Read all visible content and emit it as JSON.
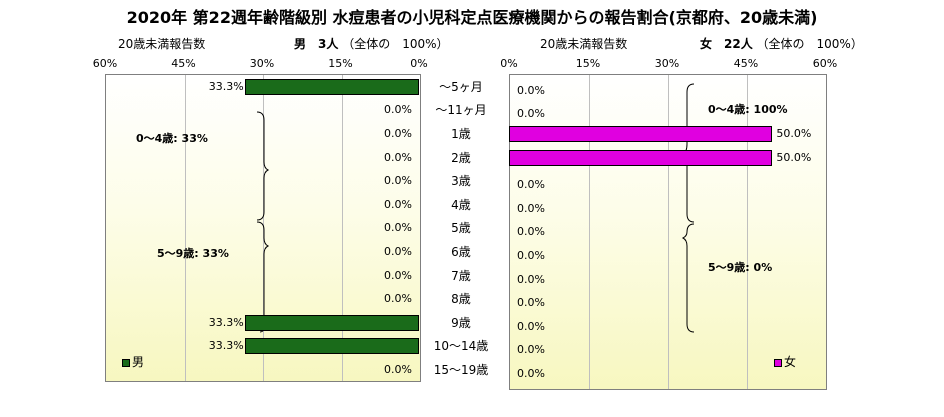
{
  "title": "2020年 第22週年齢階級別 水痘患者の小児科定点医療機関からの報告割合(京都府、20歳未満)",
  "male_header": {
    "left": "20歳未満報告数",
    "right_bold": "男　3人",
    "right_rest": "（全体の　100%）"
  },
  "female_header": {
    "left": "20歳未満報告数",
    "right_bold": "女　22人",
    "right_rest": "（全体の　100%）"
  },
  "male_groups": [
    "0～4歳: 33%",
    "5～9歳: 33%"
  ],
  "female_groups": [
    "0～4歳: 100%",
    "5～9歳: 0%"
  ],
  "legend": {
    "male": "男",
    "female": "女"
  },
  "colors": {
    "male": "#1a6b1a",
    "female": "#e000e0"
  },
  "chart_data": {
    "type": "bar",
    "orientation": "horizontal",
    "categories": [
      "～5ヶ月",
      "～11ヶ月",
      "1歳",
      "2歳",
      "3歳",
      "4歳",
      "5歳",
      "6歳",
      "7歳",
      "8歳",
      "9歳",
      "10～14歳",
      "15～19歳"
    ],
    "x_ticks": [
      "0%",
      "15%",
      "30%",
      "45%",
      "60%"
    ],
    "xlim": [
      0,
      60
    ],
    "grid": true,
    "series": [
      {
        "name": "男",
        "values": [
          33.3,
          0,
          0,
          0,
          0,
          0,
          0,
          0,
          0,
          0,
          33.3,
          33.3,
          0
        ],
        "labels": [
          "33.3%",
          "0.0%",
          "0.0%",
          "0.0%",
          "0.0%",
          "0.0%",
          "0.0%",
          "0.0%",
          "0.0%",
          "0.0%",
          "33.3%",
          "33.3%",
          "0.0%"
        ]
      },
      {
        "name": "女",
        "values": [
          0,
          0,
          50,
          50,
          0,
          0,
          0,
          0,
          0,
          0,
          0,
          0,
          0
        ],
        "labels": [
          "0.0%",
          "0.0%",
          "50.0%",
          "50.0%",
          "0.0%",
          "0.0%",
          "0.0%",
          "0.0%",
          "0.0%",
          "0.0%",
          "0.0%",
          "0.0%",
          "0.0%"
        ]
      }
    ]
  }
}
